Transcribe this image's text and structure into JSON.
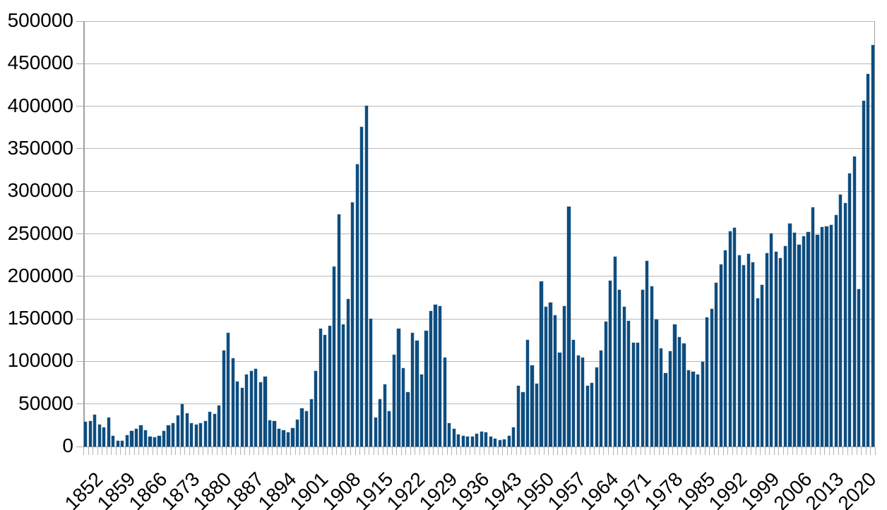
{
  "chart_data": {
    "type": "bar",
    "title": "",
    "xlabel": "",
    "ylabel": "",
    "legend": "none",
    "grid": "horizontal",
    "background_color": "#ffffff",
    "bar_color": "#0d4d80",
    "gridline_color": "#b9b9b9",
    "axis_color": "#a0a0a0",
    "text_color": "#000000",
    "ylim": [
      0,
      500000
    ],
    "ytick_step": 50000,
    "ytick_labels": [
      "0",
      "50000",
      "100000",
      "150000",
      "200000",
      "250000",
      "300000",
      "350000",
      "400000",
      "450000",
      "500000"
    ],
    "xtick_interval_years": 7,
    "xtick_labels": [
      "1852",
      "1859",
      "1866",
      "1873",
      "1880",
      "1887",
      "1894",
      "1901",
      "1908",
      "1915",
      "1922",
      "1929",
      "1936",
      "1943",
      "1950",
      "1957",
      "1964",
      "1971",
      "1978",
      "1985",
      "1992",
      "1999",
      "2006",
      "2013",
      "2020"
    ],
    "year_start": 1852,
    "year_end": 2023,
    "values": [
      29307,
      29464,
      37263,
      25296,
      22544,
      33854,
      12339,
      6300,
      6276,
      13589,
      18294,
      21000,
      24779,
      18958,
      11427,
      10666,
      12765,
      18630,
      24706,
      27773,
      36578,
      50050,
      39373,
      27382,
      25633,
      27082,
      29807,
      40492,
      38505,
      47991,
      112458,
      133624,
      103824,
      76169,
      69152,
      84526,
      88766,
      91600,
      75067,
      82165,
      30996,
      29633,
      20829,
      18790,
      16835,
      21716,
      31900,
      44543,
      41681,
      55747,
      89102,
      138660,
      131252,
      141465,
      211653,
      272409,
      143326,
      173694,
      286839,
      331288,
      375756,
      400870,
      150484,
      33665,
      55914,
      72910,
      41845,
      107698,
      138824,
      91728,
      64224,
      133729,
      124164,
      84907,
      135982,
      158886,
      166783,
      164993,
      104806,
      27530,
      20591,
      14382,
      12476,
      11277,
      11643,
      15101,
      17244,
      16994,
      11324,
      9329,
      7576,
      8504,
      12801,
      22722,
      71719,
      64127,
      125414,
      95217,
      73912,
      194391,
      164498,
      168868,
      154227,
      109946,
      164857,
      282164,
      124851,
      106928,
      104111,
      71698,
      74856,
      93151,
      112606,
      146758,
      194743,
      222876,
      183974,
      164531,
      147713,
      121900,
      122006,
      184200,
      218465,
      187881,
      149429,
      114914,
      86313,
      112096,
      143135,
      128618,
      121147,
      89157,
      88239,
      84302,
      99219,
      152098,
      161929,
      192001,
      214230,
      230781,
      252842,
      256641,
      224364,
      212859,
      226039,
      216014,
      174159,
      189922,
      227346,
      250484,
      229091,
      221352,
      235824,
      262241,
      251649,
      236753,
      247246,
      252172,
      280687,
      248748,
      257887,
      258953,
      260404,
      271845,
      296346,
      286479,
      321035,
      341180,
      184624,
      405999,
      437539,
      471771
    ]
  }
}
